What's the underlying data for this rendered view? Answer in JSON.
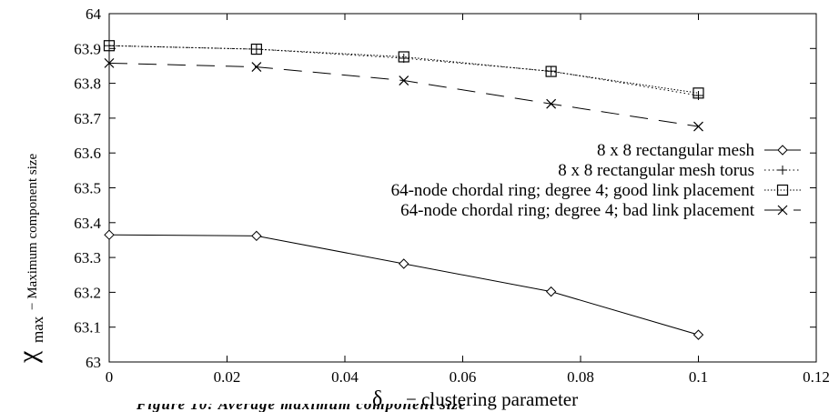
{
  "chart_data": {
    "type": "line",
    "title": "",
    "xlabel": {
      "symbol": "δ",
      "text": "− clustering parameter"
    },
    "ylabel": {
      "symbol": "χ",
      "subscript": "max",
      "text": "− Maximum component size"
    },
    "xlim": [
      0,
      0.12
    ],
    "ylim": [
      63,
      64
    ],
    "xticks": [
      "0",
      "0.02",
      "0.04",
      "0.06",
      "0.08",
      "0.1",
      "0.12"
    ],
    "yticks": [
      "63",
      "63.1",
      "63.2",
      "63.3",
      "63.4",
      "63.5",
      "63.6",
      "63.7",
      "63.8",
      "63.9",
      "64"
    ],
    "grid": false,
    "legend_position": "center-right",
    "series": [
      {
        "name": "8 x 8 rectangular mesh",
        "marker": "diamond",
        "line": "solid",
        "x": [
          0,
          0.025,
          0.05,
          0.075,
          0.1
        ],
        "y": [
          63.365,
          63.362,
          63.282,
          63.202,
          63.078
        ]
      },
      {
        "name": "8 x 8 rectangular mesh torus",
        "marker": "plus",
        "line": "dotted",
        "x": [
          0,
          0.025,
          0.05,
          0.075,
          0.1
        ],
        "y": [
          63.908,
          63.898,
          63.872,
          63.835,
          63.765
        ]
      },
      {
        "name": "64-node chordal ring; degree 4; good link placement",
        "marker": "square",
        "line": "dash-dot",
        "x": [
          0,
          0.025,
          0.05,
          0.075,
          0.1
        ],
        "y": [
          63.908,
          63.898,
          63.876,
          63.834,
          63.772
        ]
      },
      {
        "name": "64-node chordal ring; degree 4; bad link placement",
        "marker": "x",
        "line": "dashed",
        "x": [
          0,
          0.025,
          0.05,
          0.075,
          0.1
        ],
        "y": [
          63.858,
          63.847,
          63.808,
          63.741,
          63.676
        ]
      }
    ]
  },
  "caption_fragment": "Figure 10: Average maximum component size"
}
